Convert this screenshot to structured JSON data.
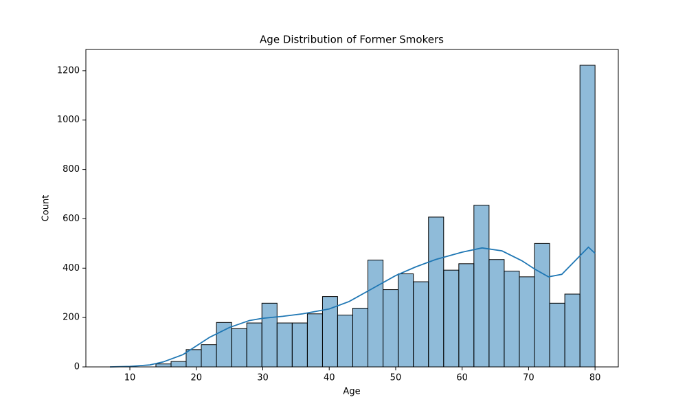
{
  "chart_data": {
    "type": "histogram",
    "title": "Age Distribution of Former Smokers",
    "x_label": "Age",
    "y_label": "Count",
    "bins": [
      7.08,
      9.36,
      11.64,
      13.92,
      16.2,
      18.47,
      20.75,
      23.03,
      25.31,
      27.59,
      29.87,
      32.15,
      34.43,
      36.71,
      38.99,
      41.26,
      43.54,
      45.82,
      48.1,
      50.38,
      52.66,
      54.94,
      57.22,
      59.5,
      61.77,
      64.05,
      66.33,
      68.61,
      70.89,
      73.17,
      75.45,
      77.73,
      80.0
    ],
    "values": [
      0,
      0,
      0,
      12,
      22,
      70,
      90,
      180,
      155,
      178,
      258,
      178,
      178,
      215,
      285,
      210,
      238,
      433,
      313,
      377,
      345,
      607,
      392,
      418,
      655,
      435,
      388,
      365,
      500,
      258,
      295,
      1222
    ],
    "color": "rgba(31,119,180,0.5)",
    "edgecolor": "#000000",
    "kde": {
      "color": "#1f77b4",
      "x": [
        7,
        10,
        13,
        15,
        18,
        20,
        22,
        25,
        28,
        30,
        33,
        36,
        40,
        43,
        46,
        50,
        53,
        56,
        60,
        63,
        66,
        69,
        71,
        73,
        75,
        77,
        79,
        80
      ],
      "y": [
        0,
        2,
        8,
        20,
        50,
        85,
        120,
        160,
        188,
        197,
        205,
        215,
        235,
        265,
        310,
        370,
        405,
        435,
        465,
        482,
        470,
        430,
        395,
        365,
        375,
        430,
        485,
        460
      ]
    },
    "xlim": [
      3.38,
      83.5
    ],
    "ylim": [
      0,
      1286
    ],
    "xticks": [
      10,
      20,
      30,
      40,
      50,
      60,
      70,
      80
    ],
    "yticks": [
      0,
      200,
      400,
      600,
      800,
      1000,
      1200
    ]
  }
}
